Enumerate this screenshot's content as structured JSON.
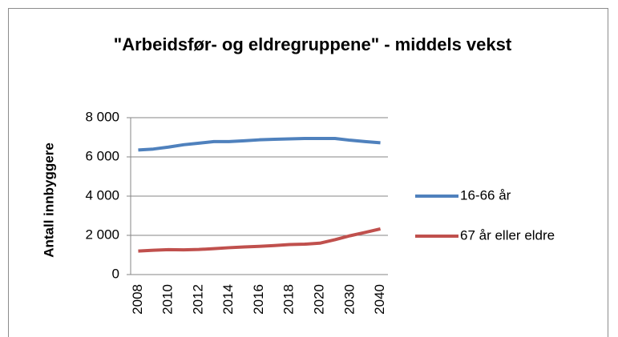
{
  "chart_data": {
    "type": "line",
    "title": "\"Arbeidsfør- og eldregruppene\" - middels vekst",
    "y_label": "Antall innbyggere",
    "categories": [
      "2008",
      null,
      "2010",
      null,
      "2012",
      null,
      "2014",
      null,
      "2016",
      null,
      "2018",
      null,
      "2020",
      null,
      "2030",
      null,
      "2040"
    ],
    "series": [
      {
        "name": "16-66 år",
        "color": "#4f81bd",
        "values": [
          6350,
          6400,
          6500,
          6620,
          6700,
          6780,
          6780,
          6820,
          6870,
          6900,
          6920,
          6940,
          6940,
          6940,
          6850,
          6780,
          6720
        ]
      },
      {
        "name": "67 år eller eldre",
        "color": "#c0504d",
        "values": [
          1200,
          1240,
          1270,
          1260,
          1280,
          1320,
          1370,
          1410,
          1440,
          1480,
          1530,
          1550,
          1600,
          1780,
          1980,
          2150,
          2330
        ]
      }
    ],
    "ylim": [
      0,
      8000
    ],
    "yticks": [
      0,
      {
        "value": 2000,
        "label": "2 000"
      },
      {
        "value": 4000,
        "label": "4 000"
      },
      {
        "value": 6000,
        "label": "6 000"
      },
      {
        "value": 8000,
        "label": "8 000"
      }
    ],
    "grid": true,
    "legend": "right"
  }
}
